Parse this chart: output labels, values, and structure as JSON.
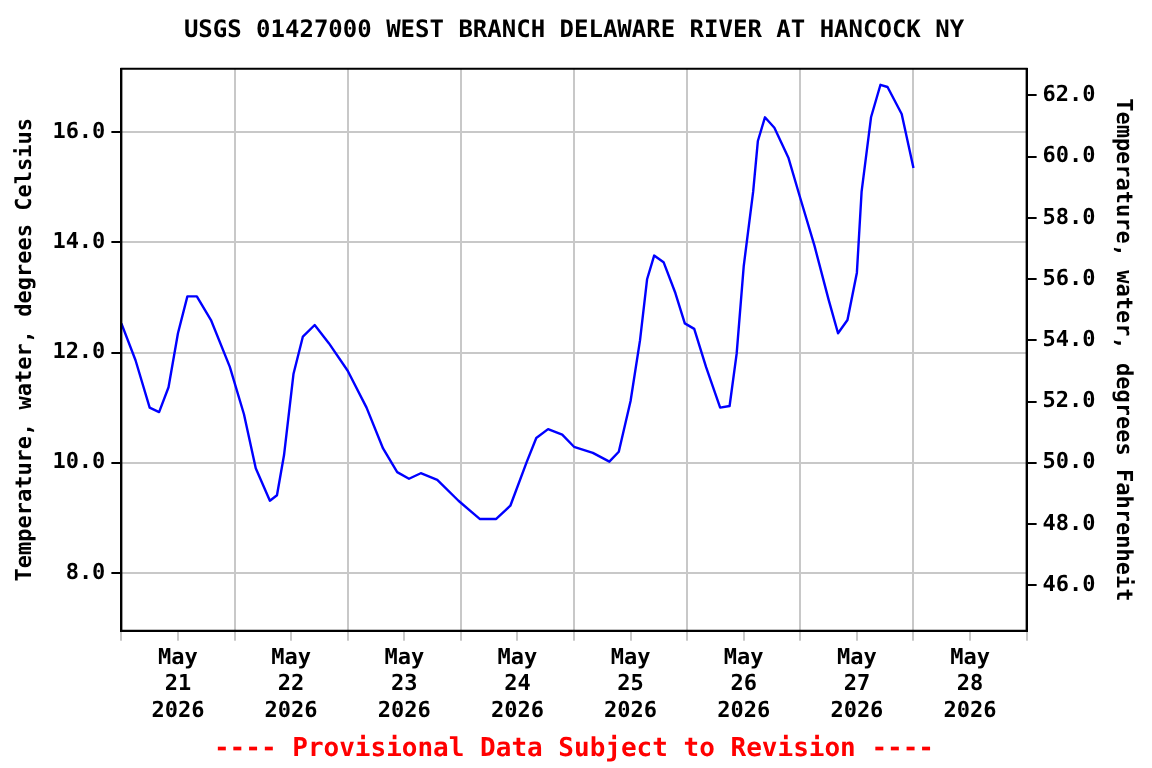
{
  "chart_data": {
    "type": "line",
    "title": "USGS 01427000 WEST BRANCH DELAWARE RIVER AT HANCOCK NY",
    "ylabel": "Temperature, water, degrees Celsius",
    "y2label": "Temperature, water, degrees Fahrenheit",
    "annotations": [
      "---- Provisional Data Subject to Revision ----"
    ],
    "x": [
      "2026-05-21T00:00",
      "2026-05-21T03:00",
      "2026-05-21T06:00",
      "2026-05-21T08:00",
      "2026-05-21T10:00",
      "2026-05-21T12:00",
      "2026-05-21T14:00",
      "2026-05-21T16:00",
      "2026-05-21T19:00",
      "2026-05-21T23:00",
      "2026-05-22T02:00",
      "2026-05-22T04:30",
      "2026-05-22T07:30",
      "2026-05-22T09:00",
      "2026-05-22T10:30",
      "2026-05-22T12:30",
      "2026-05-22T14:30",
      "2026-05-22T17:00",
      "2026-05-22T20:00",
      "2026-05-23T00:00",
      "2026-05-23T04:00",
      "2026-05-23T07:30",
      "2026-05-23T10:30",
      "2026-05-23T13:00",
      "2026-05-23T15:30",
      "2026-05-23T19:00",
      "2026-05-23T23:30",
      "2026-05-24T04:00",
      "2026-05-24T07:30",
      "2026-05-24T10:30",
      "2026-05-24T14:00",
      "2026-05-24T16:00",
      "2026-05-24T18:30",
      "2026-05-24T21:30",
      "2026-05-25T00:00",
      "2026-05-25T04:00",
      "2026-05-25T07:30",
      "2026-05-25T09:30",
      "2026-05-25T12:00",
      "2026-05-25T14:00",
      "2026-05-25T15:30",
      "2026-05-25T17:00",
      "2026-05-25T19:00",
      "2026-05-25T21:30",
      "2026-05-25T23:30",
      "2026-05-26T01:30",
      "2026-05-26T04:00",
      "2026-05-26T07:00",
      "2026-05-26T09:00",
      "2026-05-26T10:30",
      "2026-05-26T12:00",
      "2026-05-26T14:00",
      "2026-05-26T15:00",
      "2026-05-26T16:30",
      "2026-05-26T18:30",
      "2026-05-26T21:30",
      "2026-05-27T00:00",
      "2026-05-27T03:00",
      "2026-05-27T06:00",
      "2026-05-27T08:00",
      "2026-05-27T10:00",
      "2026-05-27T12:00",
      "2026-05-27T13:00",
      "2026-05-27T15:00",
      "2026-05-27T17:00",
      "2026-05-27T18:30",
      "2026-05-27T21:30",
      "2026-05-28T00:00"
    ],
    "series": [
      {
        "color": "#0000ff",
        "values": [
          12.53,
          11.86,
          11.0,
          10.92,
          11.37,
          12.35,
          13.02,
          13.02,
          12.59,
          11.74,
          10.88,
          9.9,
          9.31,
          9.41,
          10.14,
          11.61,
          12.29,
          12.5,
          12.17,
          11.67,
          11.0,
          10.26,
          9.83,
          9.71,
          9.81,
          9.69,
          9.31,
          8.98,
          8.98,
          9.22,
          10.02,
          10.45,
          10.61,
          10.51,
          10.29,
          10.18,
          10.02,
          10.2,
          11.12,
          12.22,
          13.33,
          13.76,
          13.64,
          13.08,
          12.53,
          12.43,
          11.74,
          11.0,
          11.03,
          11.98,
          13.57,
          14.92,
          15.84,
          16.27,
          16.08,
          15.53,
          14.8,
          13.94,
          12.96,
          12.35,
          12.59,
          13.45,
          14.92,
          16.27,
          16.86,
          16.82,
          16.33,
          15.35
        ]
      }
    ],
    "xlim": [
      "2026-05-21T00:00",
      "2026-05-29T00:00"
    ],
    "xticks": [
      {
        "value": "2026-05-21T00:00",
        "label": null
      },
      {
        "value": "2026-05-21T12:00",
        "label": "May\n21\n2026"
      },
      {
        "value": "2026-05-22T00:00",
        "label": null
      },
      {
        "value": "2026-05-22T12:00",
        "label": "May\n22\n2026"
      },
      {
        "value": "2026-05-23T00:00",
        "label": null
      },
      {
        "value": "2026-05-23T12:00",
        "label": "May\n23\n2026"
      },
      {
        "value": "2026-05-24T00:00",
        "label": null
      },
      {
        "value": "2026-05-24T12:00",
        "label": "May\n24\n2026"
      },
      {
        "value": "2026-05-25T00:00",
        "label": null
      },
      {
        "value": "2026-05-25T12:00",
        "label": "May\n25\n2026"
      },
      {
        "value": "2026-05-26T00:00",
        "label": null
      },
      {
        "value": "2026-05-26T12:00",
        "label": "May\n26\n2026"
      },
      {
        "value": "2026-05-27T00:00",
        "label": null
      },
      {
        "value": "2026-05-27T12:00",
        "label": "May\n27\n2026"
      },
      {
        "value": "2026-05-28T00:00",
        "label": null
      },
      {
        "value": "2026-05-28T12:00",
        "label": "May\n28\n2026"
      },
      {
        "value": "2026-05-29T00:00",
        "label": null
      }
    ],
    "ylim": [
      6.95,
      17.15
    ],
    "yticks": [
      {
        "value": 8,
        "label": "8.0"
      },
      {
        "value": 10,
        "label": "10.0"
      },
      {
        "value": 12,
        "label": "12.0"
      },
      {
        "value": 14,
        "label": "14.0"
      },
      {
        "value": 16,
        "label": "16.0"
      }
    ],
    "y2lim": [
      44.51,
      62.87
    ],
    "y2ticks": [
      {
        "value": 46,
        "label": "46.0"
      },
      {
        "value": 48,
        "label": "48.0"
      },
      {
        "value": 50,
        "label": "50.0"
      },
      {
        "value": 52,
        "label": "52.0"
      },
      {
        "value": 54,
        "label": "54.0"
      },
      {
        "value": 56,
        "label": "56.0"
      },
      {
        "value": 58,
        "label": "58.0"
      },
      {
        "value": 60,
        "label": "60.0"
      },
      {
        "value": 62,
        "label": "62.0"
      }
    ],
    "grid": true,
    "legend": false,
    "marker": "none",
    "line_style": "solid"
  }
}
